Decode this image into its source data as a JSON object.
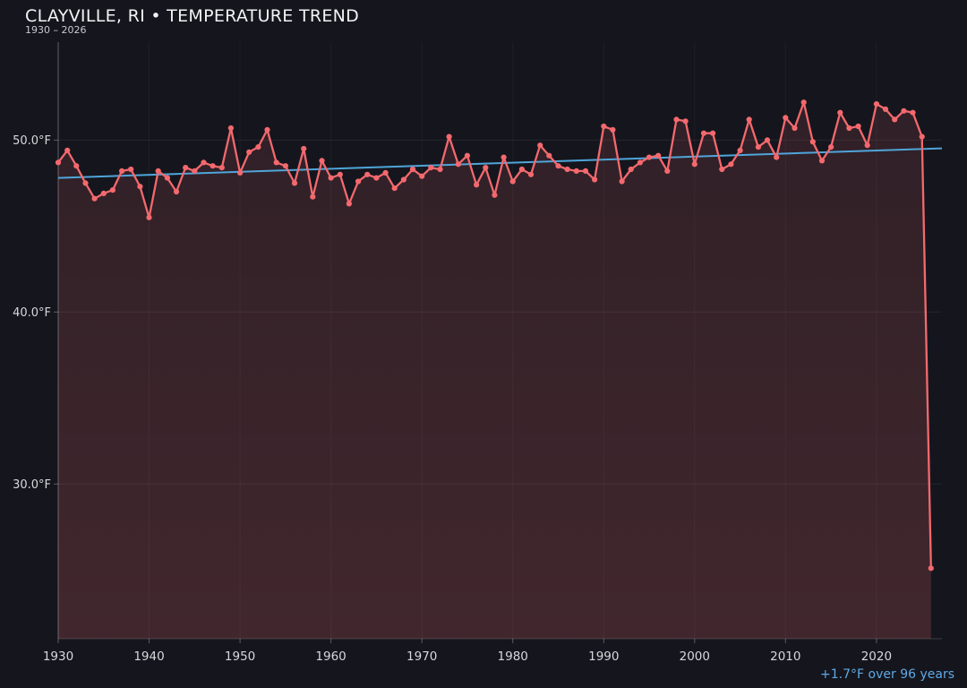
{
  "header": {
    "title": "CLAYVILLE, RI • TEMPERATURE TREND",
    "subtitle": "1930 – 2026"
  },
  "footer": {
    "annotation": "+1.7°F over 96 years"
  },
  "colors": {
    "background": "#15161d",
    "series_line": "#f3696e",
    "area_fill": "rgba(243,105,110,0.14)",
    "trend_line": "#4fa5da",
    "annotation_text": "#5ea9e5",
    "title_text": "#f2f3f5",
    "tick_text": "#d7d8dc",
    "gridline": "rgba(255,255,255,0.07)"
  },
  "chart_data": {
    "type": "line",
    "title": "CLAYVILLE, RI • TEMPERATURE TREND",
    "subtitle": "1930 – 2026",
    "xlabel": "",
    "ylabel": "",
    "xlim": [
      1930,
      2027.2
    ],
    "ylim": [
      21.0,
      55.7
    ],
    "grid": true,
    "legend": "none",
    "markers": true,
    "x": [
      1930,
      1931,
      1932,
      1933,
      1934,
      1935,
      1936,
      1937,
      1938,
      1939,
      1940,
      1941,
      1942,
      1943,
      1944,
      1945,
      1946,
      1947,
      1948,
      1949,
      1950,
      1951,
      1952,
      1953,
      1954,
      1955,
      1956,
      1957,
      1958,
      1959,
      1960,
      1961,
      1962,
      1963,
      1964,
      1965,
      1966,
      1967,
      1968,
      1969,
      1970,
      1971,
      1972,
      1973,
      1974,
      1975,
      1976,
      1977,
      1978,
      1979,
      1980,
      1981,
      1982,
      1983,
      1984,
      1985,
      1986,
      1987,
      1988,
      1989,
      1990,
      1991,
      1992,
      1993,
      1994,
      1995,
      1996,
      1997,
      1998,
      1999,
      2000,
      2001,
      2002,
      2003,
      2004,
      2005,
      2006,
      2007,
      2008,
      2009,
      2010,
      2011,
      2012,
      2013,
      2014,
      2015,
      2016,
      2017,
      2018,
      2019,
      2020,
      2021,
      2022,
      2023,
      2024,
      2025,
      2026
    ],
    "series": [
      {
        "name": "annual-mean-temperature-F",
        "color": "#f3696e",
        "values": [
          48.7,
          49.4,
          48.5,
          47.5,
          46.6,
          46.9,
          47.1,
          48.2,
          48.3,
          47.3,
          45.5,
          48.2,
          47.8,
          47.0,
          48.4,
          48.2,
          48.7,
          48.5,
          48.4,
          50.7,
          48.1,
          49.3,
          49.6,
          50.6,
          48.7,
          48.5,
          47.5,
          49.5,
          46.7,
          48.8,
          47.8,
          48.0,
          46.3,
          47.6,
          48.0,
          47.8,
          48.1,
          47.2,
          47.7,
          48.3,
          47.9,
          48.4,
          48.3,
          50.2,
          48.6,
          49.1,
          47.4,
          48.4,
          46.8,
          49.0,
          47.6,
          48.3,
          48.0,
          49.7,
          49.1,
          48.5,
          48.3,
          48.2,
          48.2,
          47.7,
          50.8,
          50.6,
          47.6,
          48.3,
          48.7,
          49.0,
          49.1,
          48.2,
          51.2,
          51.1,
          48.6,
          50.4,
          50.4,
          48.3,
          48.6,
          49.4,
          51.2,
          49.6,
          50.0,
          49.0,
          51.3,
          50.7,
          52.2,
          49.9,
          48.8,
          49.6,
          51.6,
          50.7,
          50.8,
          49.7,
          52.1,
          51.8,
          51.2,
          51.7,
          51.6,
          50.2,
          25.1
        ]
      }
    ],
    "trend": {
      "name": "linear-trend",
      "color": "#4fa5da",
      "start_year": 1930,
      "start_value": 47.8,
      "end_year": 2026,
      "end_value": 49.5,
      "change_label": "+1.7°F over 96 years"
    },
    "yticks": [
      {
        "value": 50,
        "label": "50.0°F"
      },
      {
        "value": 40,
        "label": "40.0°F"
      },
      {
        "value": 30,
        "label": "30.0°F"
      }
    ],
    "xticks": [
      {
        "value": 1930,
        "label": "1930"
      },
      {
        "value": 1940,
        "label": "1940"
      },
      {
        "value": 1950,
        "label": "1950"
      },
      {
        "value": 1960,
        "label": "1960"
      },
      {
        "value": 1970,
        "label": "1970"
      },
      {
        "value": 1980,
        "label": "1980"
      },
      {
        "value": 1990,
        "label": "1990"
      },
      {
        "value": 2000,
        "label": "2000"
      },
      {
        "value": 2010,
        "label": "2010"
      },
      {
        "value": 2020,
        "label": "2020"
      }
    ]
  }
}
